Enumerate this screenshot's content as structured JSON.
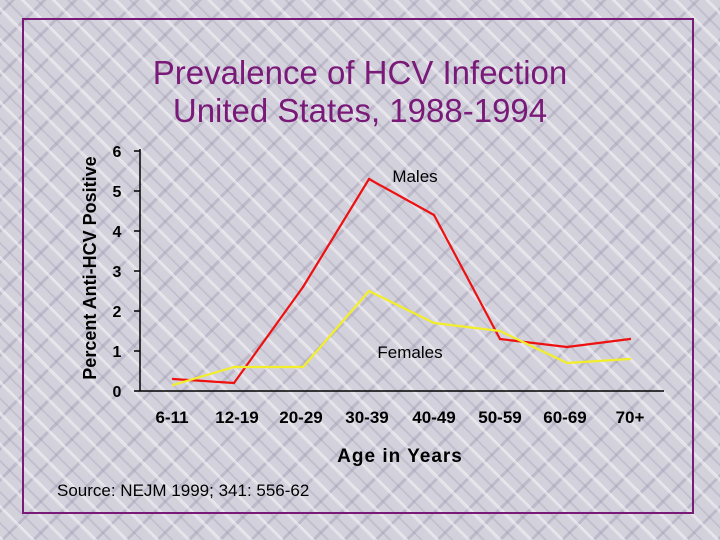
{
  "chart_data": {
    "type": "line",
    "title_lines": [
      "Prevalence of HCV Infection",
      "United States, 1988-1994"
    ],
    "xlabel": "Age in Years",
    "ylabel": "Percent Anti-HCV Positive",
    "categories": [
      "6-11",
      "12-19",
      "20-29",
      "30-39",
      "40-49",
      "50-59",
      "60-69",
      "70+"
    ],
    "yticks": [
      0,
      1,
      2,
      3,
      4,
      5,
      6
    ],
    "ylim": [
      0,
      6
    ],
    "grid": false,
    "series": [
      {
        "name": "Males",
        "color": "#ee1111",
        "values": [
          0.3,
          0.2,
          2.6,
          5.3,
          4.4,
          1.3,
          1.1,
          1.3
        ]
      },
      {
        "name": "Females",
        "color": "#f2ee2a",
        "values": [
          0.15,
          0.6,
          0.6,
          2.5,
          1.7,
          1.5,
          0.7,
          0.8
        ]
      }
    ],
    "source": "Source: NEJM 1999; 341: 556-62"
  }
}
